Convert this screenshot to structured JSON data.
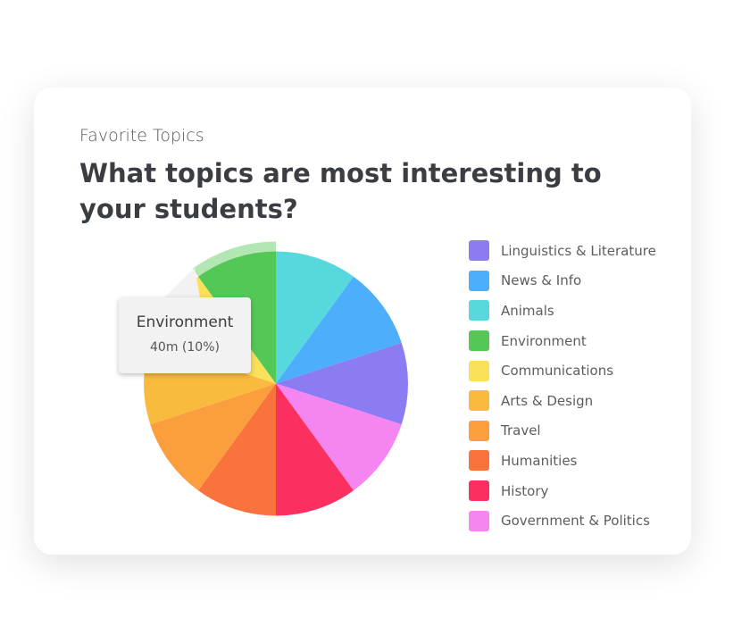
{
  "card": {
    "subtitle": "Favorite Topics",
    "title": "What topics are most interesting to your students?"
  },
  "chart_data": {
    "type": "pie",
    "unit": "percent",
    "slices": [
      {
        "label": "Animals",
        "value": 10,
        "color": "#56d8dc"
      },
      {
        "label": "News & Info",
        "value": 10,
        "color": "#4daefc"
      },
      {
        "label": "Linguistics & Literature",
        "value": 10,
        "color": "#8c7cf4"
      },
      {
        "label": "Government & Politics",
        "value": 10,
        "color": "#f585f0"
      },
      {
        "label": "History",
        "value": 10,
        "color": "#fb3060"
      },
      {
        "label": "Humanities",
        "value": 10,
        "color": "#fb733c"
      },
      {
        "label": "Travel",
        "value": 10,
        "color": "#fb9e3d"
      },
      {
        "label": "Arts & Design",
        "value": 10,
        "color": "#f9bb3e"
      },
      {
        "label": "Communications",
        "value": 10,
        "color": "#fbe05a"
      },
      {
        "label": "Environment",
        "value": 10,
        "color": "#54c856"
      }
    ],
    "legend": [
      {
        "label": "Linguistics & Literature",
        "color": "#8c7cf4"
      },
      {
        "label": "News & Info",
        "color": "#4daefc"
      },
      {
        "label": "Animals",
        "color": "#56d8dc"
      },
      {
        "label": "Environment",
        "color": "#54c856"
      },
      {
        "label": "Communications",
        "color": "#fbe05a"
      },
      {
        "label": "Arts & Design",
        "color": "#f9bb3e"
      },
      {
        "label": "Travel",
        "color": "#fb9e3d"
      },
      {
        "label": "Humanities",
        "color": "#fb733c"
      },
      {
        "label": "History",
        "color": "#fb3060"
      },
      {
        "label": "Government & Politics",
        "color": "#f585f0"
      }
    ],
    "legend_position": "right",
    "highlighted": "Environment",
    "tooltip": {
      "label": "Environment",
      "value": "40m (10%)"
    }
  }
}
